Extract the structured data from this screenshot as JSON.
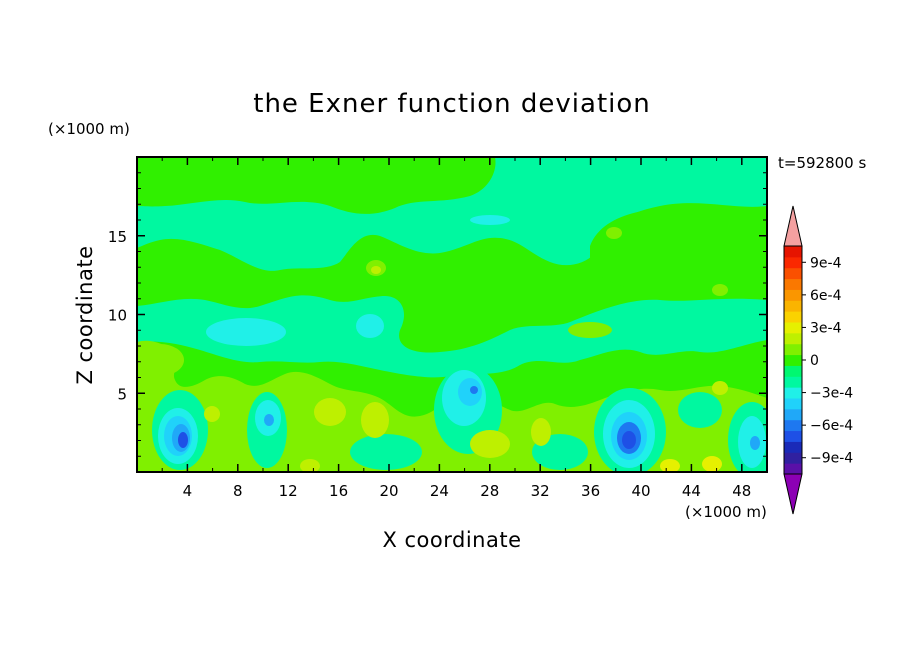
{
  "chart_data": {
    "type": "heatmap",
    "title": "the Exner function deviation",
    "xlabel": "X coordinate",
    "ylabel": "Z coordinate",
    "x_unit": "(×1000 m)",
    "y_unit": "(×1000 m)",
    "time_label": "t=592800 s",
    "xlim": [
      0,
      50
    ],
    "ylim": [
      0,
      20
    ],
    "x_ticks": [
      "4",
      "8",
      "12",
      "16",
      "20",
      "24",
      "28",
      "32",
      "36",
      "40",
      "44",
      "48"
    ],
    "y_ticks": [
      "5",
      "10",
      "15"
    ],
    "colorbar": {
      "levels": [
        -0.0011,
        -0.001,
        -0.0009,
        -0.0008,
        -0.0007,
        -0.0006,
        -0.0005,
        -0.0004,
        -0.0003,
        -0.0002,
        -0.0001,
        0,
        0.0001,
        0.0002,
        0.0003,
        0.0004,
        0.0005,
        0.0006,
        0.0007,
        0.0008,
        0.0009,
        0.001,
        0.0011
      ],
      "labels": [
        "9e-4",
        "6e-4",
        "3e-4",
        "0",
        "−3e-4",
        "−6e-4",
        "−9e-4"
      ],
      "colors": [
        "#8c00b4",
        "#5a10a8",
        "#3020a0",
        "#1a2ab8",
        "#1e50e6",
        "#1e78f0",
        "#20a8f8",
        "#20d2fa",
        "#20f0e8",
        "#00f8a0",
        "#00f870",
        "#30f000",
        "#80f000",
        "#bef000",
        "#e6f000",
        "#fad200",
        "#fab400",
        "#fa9600",
        "#fa7800",
        "#fa5000",
        "#fa2800",
        "#e61400",
        "#f4a0a0"
      ],
      "extend": "both"
    },
    "fields": [
      {
        "x": 3.8,
        "z": 2.2,
        "value": -0.00075
      },
      {
        "x": 10.6,
        "z": 3.4,
        "value": -0.0005
      },
      {
        "x": 26.8,
        "z": 5.2,
        "value": -0.0006
      },
      {
        "x": 38.8,
        "z": 2.3,
        "value": -0.0008
      },
      {
        "x": 48.4,
        "z": 1.9,
        "value": -0.0005
      },
      {
        "x": 26.2,
        "z": 16.0,
        "value": -0.0001
      },
      {
        "x": 19.3,
        "z": 12.8,
        "value": 0.00025
      },
      {
        "x": 37.8,
        "z": 15.0,
        "value": 0.0002
      },
      {
        "x": 36.0,
        "z": 9.0,
        "value": 0.0002
      },
      {
        "x": 20.0,
        "z": 2.5,
        "value": 0.00025
      },
      {
        "x": 25.0,
        "z": 2.0,
        "value": 0.0003
      },
      {
        "x": 31.5,
        "z": 2.0,
        "value": 0.0003
      }
    ]
  }
}
